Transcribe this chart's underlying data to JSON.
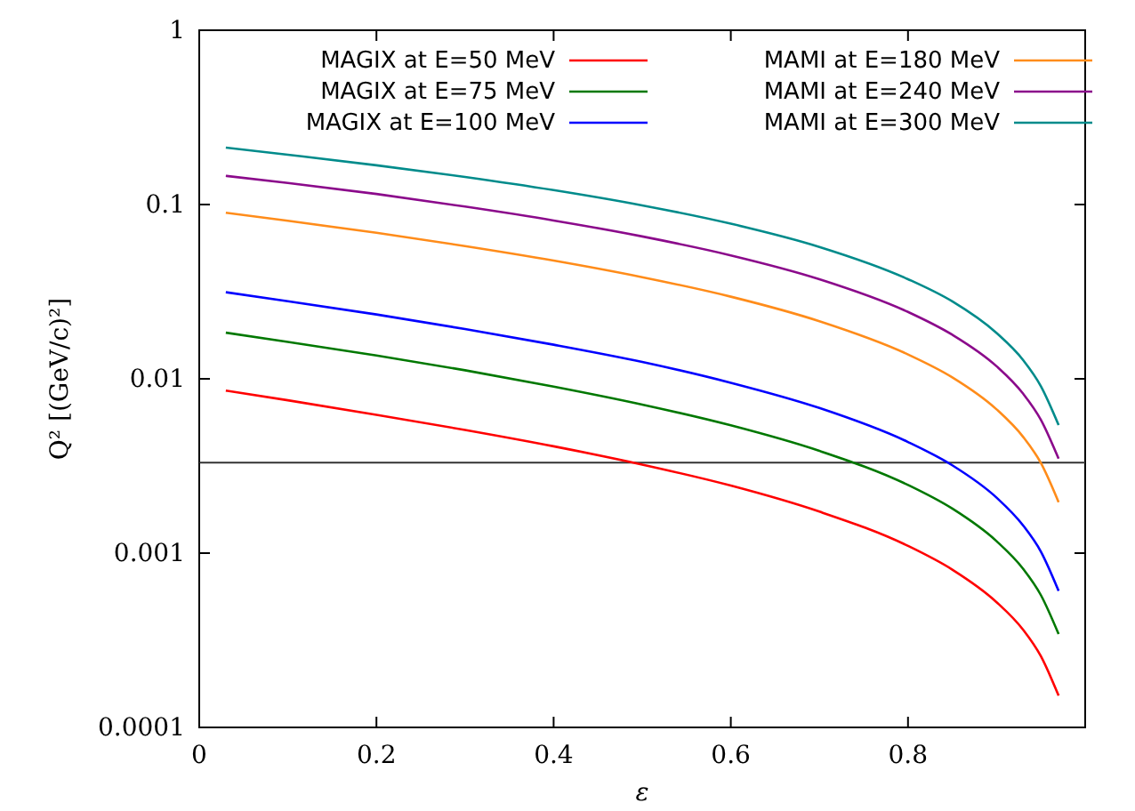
{
  "chart_data": {
    "type": "line",
    "xlabel": "ε",
    "ylabel": "Q² [(GeV/c)²]",
    "log": "y",
    "xlim": [
      0,
      1
    ],
    "xticks": [
      0,
      0.2,
      0.4,
      0.6,
      0.8
    ],
    "ylim": [
      0.0001,
      1
    ],
    "yticks": [
      {
        "value": 0.0001,
        "label": "0.0001"
      },
      {
        "value": 0.001,
        "label": "0.001"
      },
      {
        "value": 0.01,
        "label": "0.01"
      },
      {
        "value": 0.1,
        "label": "0.1"
      },
      {
        "value": 1,
        "label": "1"
      }
    ],
    "x": [
      0.03,
      0.1,
      0.2,
      0.3,
      0.4,
      0.5,
      0.6,
      0.7,
      0.8,
      0.85,
      0.9,
      0.93,
      0.95,
      0.97
    ],
    "legend": "top right",
    "grid": false,
    "line_style": "solid",
    "marker": "none",
    "series": [
      {
        "name": "MAGIX at E=50 MeV",
        "color": "#ff0000",
        "values": [
          0.00856,
          0.00753,
          0.00622,
          0.00509,
          0.0041,
          0.00322,
          0.00244,
          0.00173,
          0.0011,
          0.000804,
          0.000523,
          0.000363,
          0.000256,
          0.000152
        ]
      },
      {
        "name": "MAGIX at E=75 MeV",
        "color": "#007800",
        "values": [
          0.0184,
          0.0163,
          0.0136,
          0.0112,
          0.00903,
          0.00712,
          0.00541,
          0.00386,
          0.00246,
          0.0018,
          0.00117,
          0.000812,
          0.000574,
          0.000343
        ]
      },
      {
        "name": "MAGIX at E=100 MeV",
        "color": "#0000ff",
        "values": [
          0.0314,
          0.0279,
          0.0234,
          0.0193,
          0.0157,
          0.0125,
          0.00949,
          0.0068,
          0.00434,
          0.00319,
          0.00208,
          0.00144,
          0.00102,
          0.000607
        ]
      },
      {
        "name": "MAMI at E=180 MeV",
        "color": "#ff8c1a",
        "values": [
          0.0897,
          0.0807,
          0.0688,
          0.0578,
          0.0477,
          0.0383,
          0.0296,
          0.0214,
          0.0138,
          0.0102,
          0.00668,
          0.00464,
          0.00329,
          0.00196
        ]
      },
      {
        "name": "MAMI at E=240 MeV",
        "color": "#8b0a8b",
        "values": [
          0.146,
          0.133,
          0.115,
          0.0973,
          0.081,
          0.0656,
          0.0511,
          0.0373,
          0.0242,
          0.0179,
          0.0118,
          0.00821,
          0.00582,
          0.00348
        ]
      },
      {
        "name": "MAMI at E=300 MeV",
        "color": "#008b8b",
        "values": [
          0.212,
          0.193,
          0.168,
          0.144,
          0.121,
          0.0989,
          0.0776,
          0.0571,
          0.0373,
          0.0278,
          0.0183,
          0.0128,
          0.00907,
          0.00543
        ]
      }
    ],
    "ref_lines": [
      {
        "axis": "y",
        "value": 0.0033,
        "color": "#333333"
      }
    ]
  }
}
